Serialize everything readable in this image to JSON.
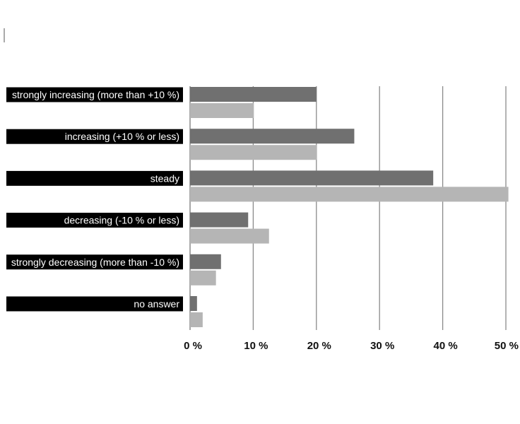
{
  "chart_data": {
    "type": "bar",
    "orientation": "horizontal",
    "categories": [
      "strongly increasing (more than +10 %)",
      "increasing (+10 % or less)",
      "steady",
      "decreasing (-10 % or less)",
      "strongly decreasing (more than -10 %)",
      "no answer"
    ],
    "series": [
      {
        "values": [
          20,
          26,
          38.5,
          9.2,
          4.9,
          1.1
        ]
      },
      {
        "values": [
          10.1,
          20.1,
          50.4,
          12.5,
          4.1,
          2
        ]
      }
    ],
    "xlim": [
      0,
      50
    ],
    "xticks": [
      0,
      10,
      20,
      30,
      40,
      50
    ],
    "xtick_labels": [
      "0 %",
      "10 %",
      "20 %",
      "30 %",
      "40 %",
      "50 %"
    ],
    "grid": true,
    "colors": {
      "series_1": "#707070",
      "series_2": "#b5b5b5",
      "label_band": "#000000",
      "grid": "#8a8a8a"
    }
  }
}
